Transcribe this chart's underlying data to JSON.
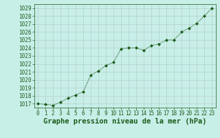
{
  "x": [
    0,
    1,
    2,
    3,
    4,
    5,
    6,
    7,
    8,
    9,
    10,
    11,
    12,
    13,
    14,
    15,
    16,
    17,
    18,
    19,
    20,
    21,
    22,
    23
  ],
  "y": [
    1017.0,
    1016.9,
    1016.8,
    1017.2,
    1017.7,
    1018.1,
    1018.5,
    1020.6,
    1021.1,
    1021.8,
    1022.2,
    1023.9,
    1024.0,
    1024.0,
    1023.7,
    1024.3,
    1024.5,
    1025.0,
    1025.0,
    1026.0,
    1026.5,
    1027.1,
    1028.0,
    1029.0
  ],
  "line_color": "#1a5c1a",
  "marker": "D",
  "marker_size": 2.0,
  "bg_color": "#c8eee8",
  "grid_color": "#b0c8c4",
  "xlabel": "Graphe pression niveau de la mer (hPa)",
  "xlabel_fontsize": 7.5,
  "ytick_min": 1017,
  "ytick_max": 1029,
  "ytick_step": 1,
  "linewidth": 0.8,
  "tick_fontsize": 5.5,
  "bottom_color": "#2a6b2a"
}
